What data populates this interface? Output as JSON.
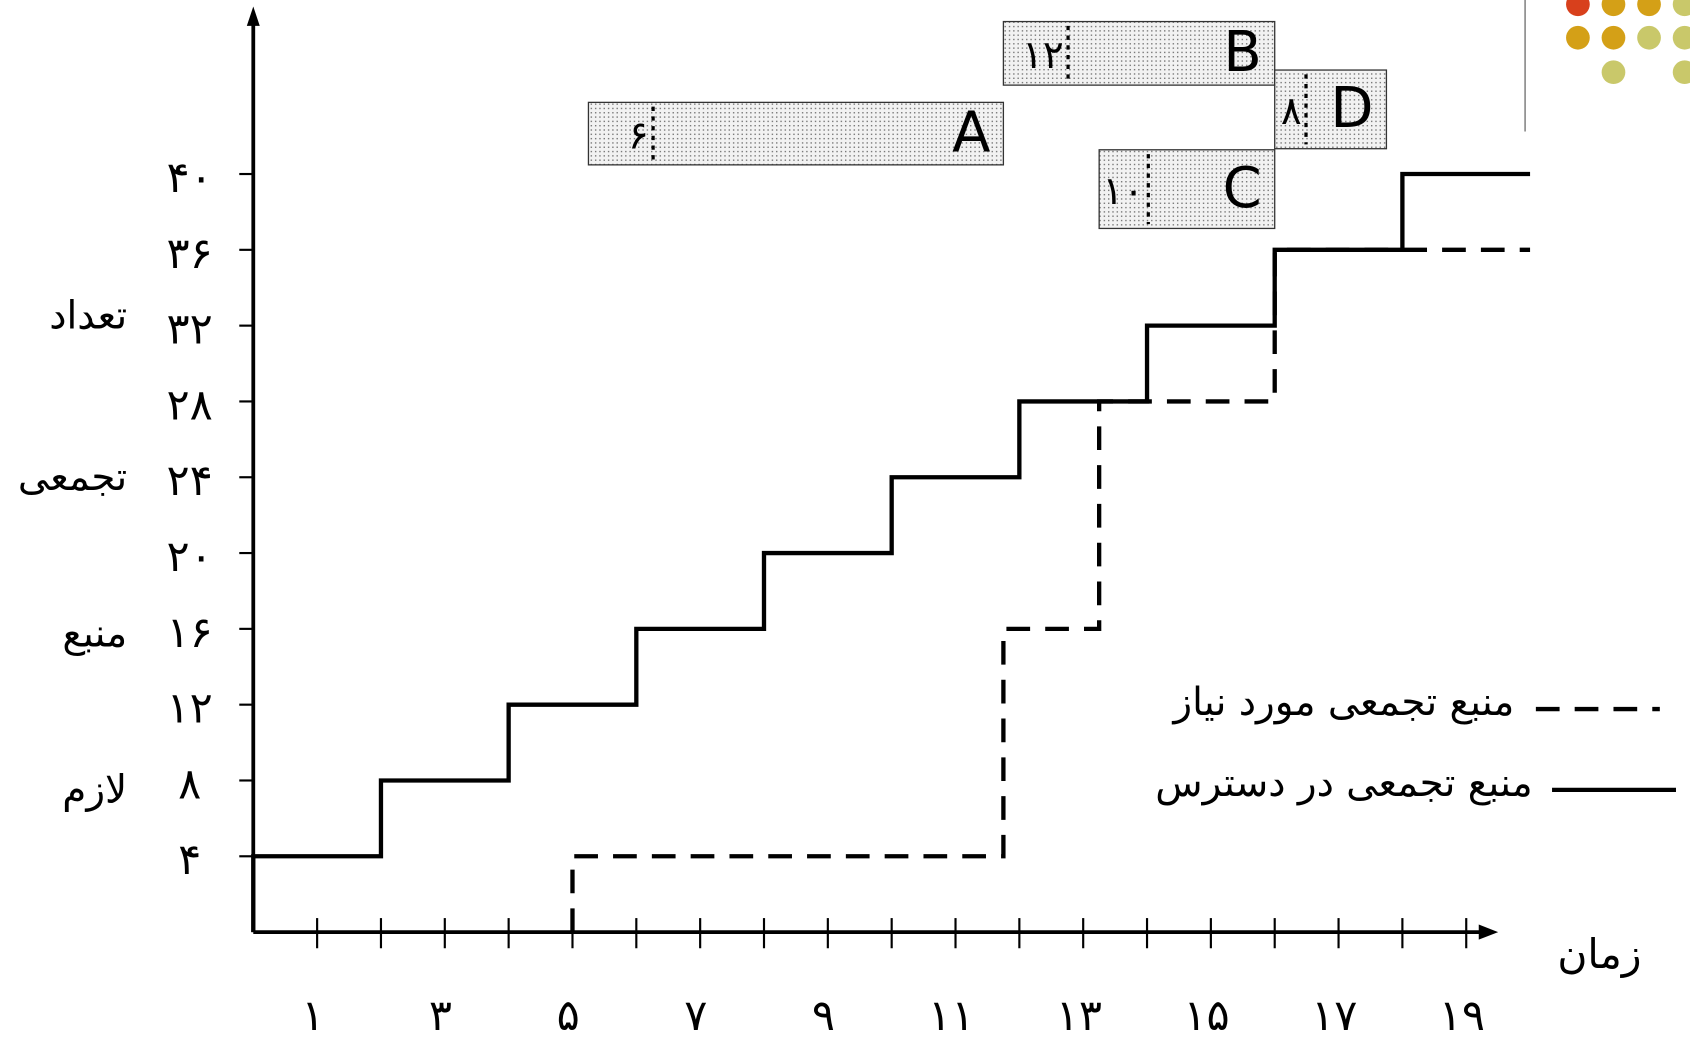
{
  "chart_data": {
    "type": "step",
    "x_label": "زمان",
    "y_label_lines": [
      "تعداد",
      "تجمعی",
      "منبع",
      "لازم"
    ],
    "xlim": [
      0,
      19.5
    ],
    "ylim": [
      0,
      48.5
    ],
    "xticks": [
      {
        "value": 1,
        "label": "۱"
      },
      {
        "value": 3,
        "label": "۳"
      },
      {
        "value": 5,
        "label": "۵"
      },
      {
        "value": 7,
        "label": "۷"
      },
      {
        "value": 9,
        "label": "۹"
      },
      {
        "value": 11,
        "label": "۱۱"
      },
      {
        "value": 13,
        "label": "۱۳"
      },
      {
        "value": 15,
        "label": "۱۵"
      },
      {
        "value": 17,
        "label": "۱۷"
      },
      {
        "value": 19,
        "label": "۱۹"
      }
    ],
    "minor_xticks": [
      2,
      4,
      6,
      8,
      10,
      12,
      14,
      16,
      18
    ],
    "yticks": [
      {
        "value": 4,
        "label": "۴"
      },
      {
        "value": 8,
        "label": "۸"
      },
      {
        "value": 12,
        "label": "۱۲"
      },
      {
        "value": 16,
        "label": "۱۶"
      },
      {
        "value": 20,
        "label": "۲۰"
      },
      {
        "value": 24,
        "label": "۲۴"
      },
      {
        "value": 28,
        "label": "۲۸"
      },
      {
        "value": 32,
        "label": "۳۲"
      },
      {
        "value": 36,
        "label": "۳۶"
      },
      {
        "value": 40,
        "label": "۴۰"
      }
    ],
    "series": [
      {
        "name": "منبع تجمعی مورد نیاز",
        "color": "#000000",
        "dash": true,
        "x": [
          5,
          11.75,
          13.25,
          16,
          20
        ],
        "values": [
          4,
          16,
          28,
          36,
          36
        ]
      },
      {
        "name": "منبع تجمعی در دسترس",
        "color": "#000000",
        "dash": false,
        "x": [
          0,
          2,
          4,
          6,
          8,
          10,
          12,
          14,
          16,
          18,
          20
        ],
        "values": [
          4,
          8,
          12,
          16,
          20,
          24,
          28,
          32,
          36,
          40,
          40
        ]
      }
    ],
    "activities": [
      {
        "name": "A",
        "resource_label": "۶",
        "start": 5.25,
        "end": 11.75
      },
      {
        "name": "B",
        "resource_label": "۱۲",
        "start": 11.75,
        "end": 16
      },
      {
        "name": "C",
        "resource_label": "۱۰",
        "start": 13.25,
        "end": 16
      },
      {
        "name": "D",
        "resource_label": "۸",
        "start": 16,
        "end": 17.75
      }
    ]
  }
}
